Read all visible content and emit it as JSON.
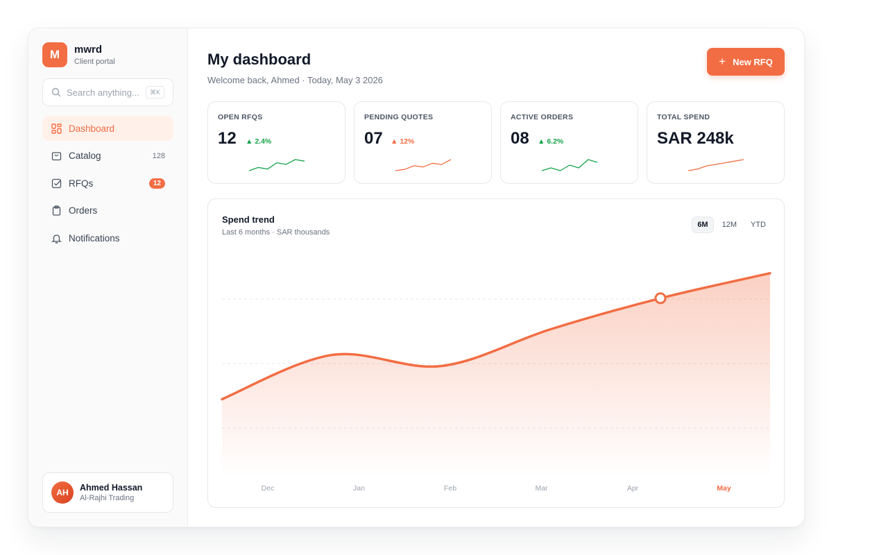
{
  "brand": {
    "initial": "M",
    "name": "mwrd",
    "subtitle": "Client portal"
  },
  "search": {
    "placeholder": "Search anything...",
    "shortcut": "⌘K"
  },
  "nav": [
    {
      "label": "Dashboard",
      "icon": "grid-icon",
      "active": true
    },
    {
      "label": "Catalog",
      "icon": "shopping-bag-icon",
      "count": "128"
    },
    {
      "label": "RFQs",
      "icon": "checkbox-icon",
      "badge": "12"
    },
    {
      "label": "Orders",
      "icon": "clipboard-icon"
    },
    {
      "label": "Notifications",
      "icon": "bell-icon"
    }
  ],
  "user": {
    "initials": "AH",
    "name": "Ahmed Hassan",
    "org": "Al-Rajhi Trading"
  },
  "header": {
    "title": "My dashboard",
    "subtitle": "Welcome back, Ahmed · Today, May 3 2026",
    "new_rfq_label": "New RFQ"
  },
  "stats": [
    {
      "label": "OPEN RFQS",
      "value": "12",
      "delta": "2.4%",
      "trend": "up",
      "color": "#16a34a",
      "spark": [
        3,
        5,
        4,
        8,
        7,
        10,
        9
      ]
    },
    {
      "label": "PENDING QUOTES",
      "value": "07",
      "delta": "12%",
      "trend": "up",
      "color": "#f26d43",
      "spark": [
        2,
        3,
        6,
        5,
        8,
        7,
        11
      ]
    },
    {
      "label": "ACTIVE ORDERS",
      "value": "08",
      "delta": "6.2%",
      "trend": "up",
      "color": "#16a34a",
      "spark": [
        5,
        6,
        5,
        7,
        6,
        9,
        8
      ]
    },
    {
      "label": "TOTAL SPEND",
      "value": "SAR 248k",
      "delta": "",
      "trend": "",
      "color": "#f26d43",
      "spark": [
        2,
        3,
        5,
        6,
        7,
        8,
        9
      ]
    }
  ],
  "chart": {
    "title": "Spend trend",
    "subtitle": "Last 6 months · SAR thousands",
    "ranges": [
      "6M",
      "12M",
      "YTD"
    ],
    "active_range": "6M",
    "accent": "#f26d43"
  },
  "chart_data": {
    "type": "area",
    "categories": [
      "Dec",
      "Jan",
      "Feb",
      "Mar",
      "Apr",
      "May"
    ],
    "values": [
      105,
      165,
      150,
      200,
      242,
      276
    ],
    "highlight": "Apr",
    "active_category": "May",
    "ylim": [
      0,
      320
    ],
    "grid": true,
    "xlabel": "",
    "ylabel": ""
  }
}
